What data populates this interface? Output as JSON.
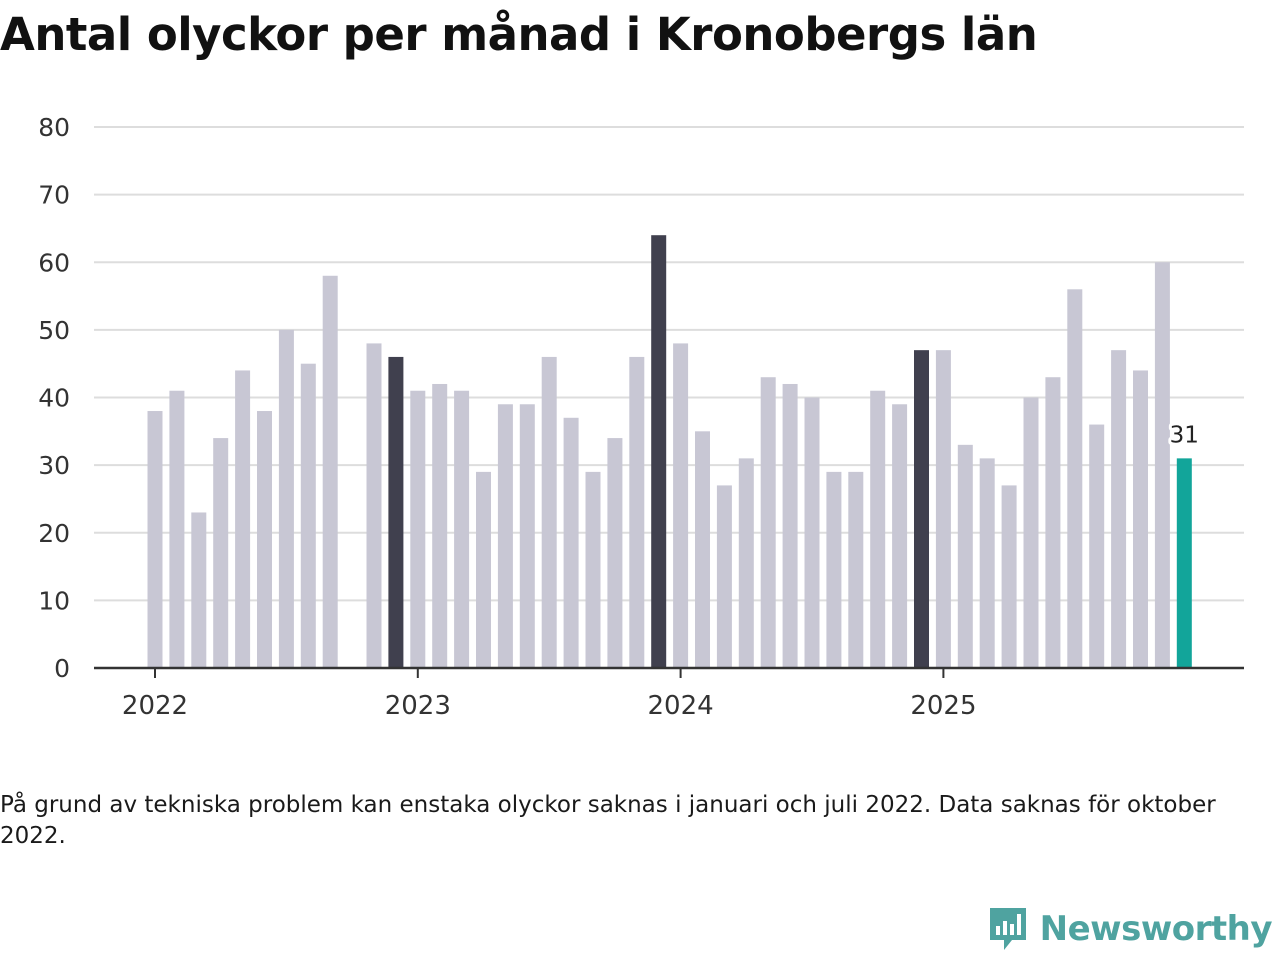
{
  "title": "Antal olyckor per månad i Kronobergs län",
  "note": "På grund av tekniska problem kan enstaka olyckor saknas i januari och juli 2022. Data saknas för oktober 2022.",
  "brand": {
    "name": "Newsworthy",
    "logo_icon": "newsworthy-logo-icon"
  },
  "colors": {
    "default_bar": "#c8c7d4",
    "highlight_bar": "#40404e",
    "latest_bar": "#12a59a",
    "grid": "#dddddd",
    "axis": "#333333",
    "brand": "#4fa3a0"
  },
  "chart_data": {
    "type": "bar",
    "title": "Antal olyckor per månad i Kronobergs län",
    "xlabel": "",
    "ylabel": "",
    "ylim": [
      0,
      80
    ],
    "yticks": [
      0,
      10,
      20,
      30,
      40,
      50,
      60,
      70,
      80
    ],
    "grid": true,
    "xtick_labels": [
      {
        "label": "2022",
        "index": 0
      },
      {
        "label": "2023",
        "index": 12
      },
      {
        "label": "2024",
        "index": 24
      },
      {
        "label": "2025",
        "index": 36
      }
    ],
    "categories": [
      "2022-01",
      "2022-02",
      "2022-03",
      "2022-04",
      "2022-05",
      "2022-06",
      "2022-07",
      "2022-08",
      "2022-09",
      "2022-10",
      "2022-11",
      "2022-12",
      "2023-01",
      "2023-02",
      "2023-03",
      "2023-04",
      "2023-05",
      "2023-06",
      "2023-07",
      "2023-08",
      "2023-09",
      "2023-10",
      "2023-11",
      "2023-12",
      "2024-01",
      "2024-02",
      "2024-03",
      "2024-04",
      "2024-05",
      "2024-06",
      "2024-07",
      "2024-08",
      "2024-09",
      "2024-10",
      "2024-11",
      "2024-12",
      "2025-01",
      "2025-02",
      "2025-03",
      "2025-04",
      "2025-05",
      "2025-06",
      "2025-07",
      "2025-08",
      "2025-09",
      "2025-10",
      "2025-11",
      "2025-12"
    ],
    "values": [
      38,
      41,
      23,
      34,
      44,
      38,
      50,
      45,
      58,
      null,
      48,
      46,
      41,
      42,
      41,
      29,
      39,
      39,
      46,
      37,
      29,
      34,
      46,
      64,
      48,
      35,
      27,
      31,
      43,
      42,
      40,
      29,
      29,
      41,
      39,
      47,
      47,
      33,
      31,
      27,
      40,
      43,
      56,
      36,
      47,
      44,
      60,
      31
    ],
    "highlight_indices": [
      11,
      23,
      35
    ],
    "latest_index": 47,
    "latest_label": "31"
  }
}
